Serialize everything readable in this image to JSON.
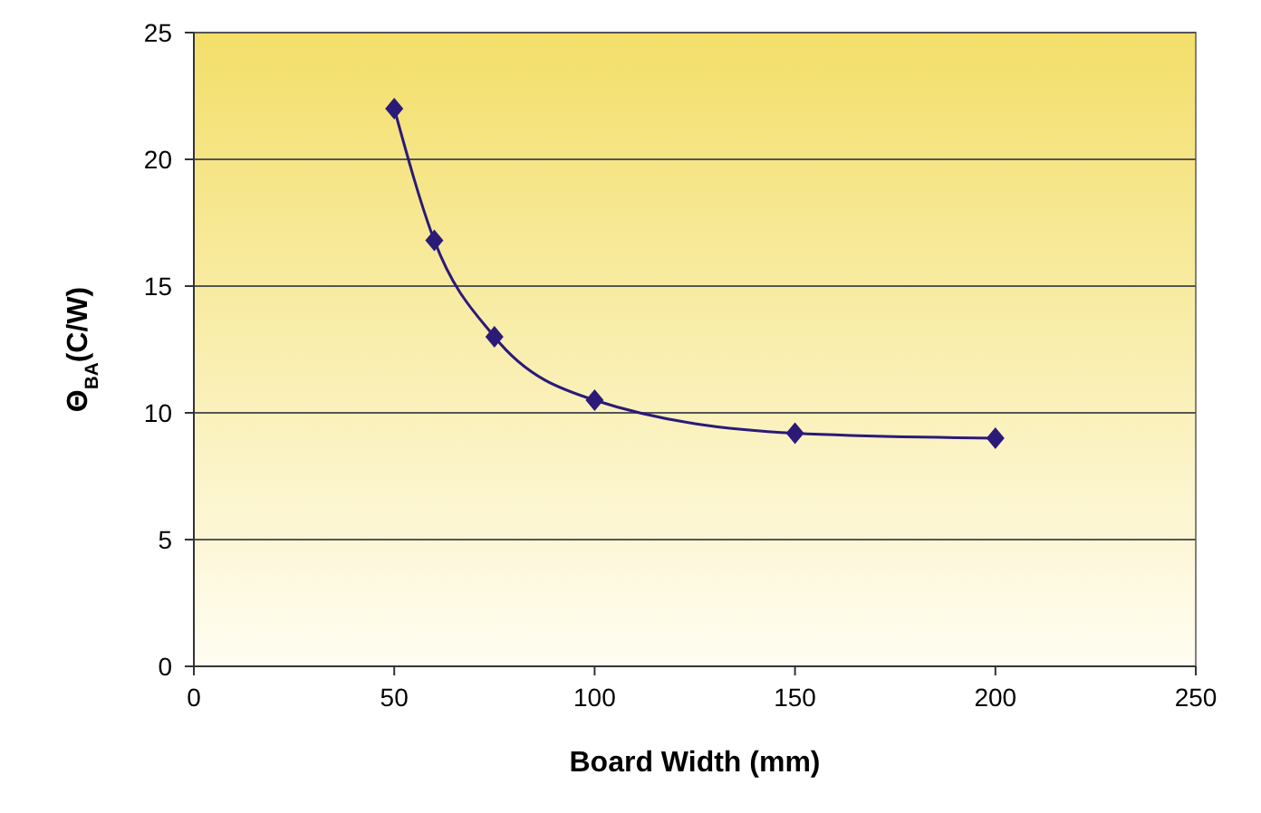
{
  "chart_data": {
    "type": "line",
    "xlabel": "Board Width (mm)",
    "ylabel": "Θ$_{BA}$(C/W)",
    "x": [
      50,
      60,
      75,
      100,
      150,
      200
    ],
    "series": [
      {
        "color": "#2b1a78",
        "values": [
          22,
          16.8,
          13,
          10.5,
          9.2,
          9
        ]
      }
    ],
    "xlim": [
      0,
      250
    ],
    "xticks": [
      0,
      50,
      100,
      150,
      200,
      250
    ],
    "ylim": [
      0,
      25
    ],
    "yticks": [
      0,
      5,
      10,
      15,
      20,
      25
    ],
    "grid": "y",
    "marker": "diamond",
    "line_style": "solid"
  }
}
